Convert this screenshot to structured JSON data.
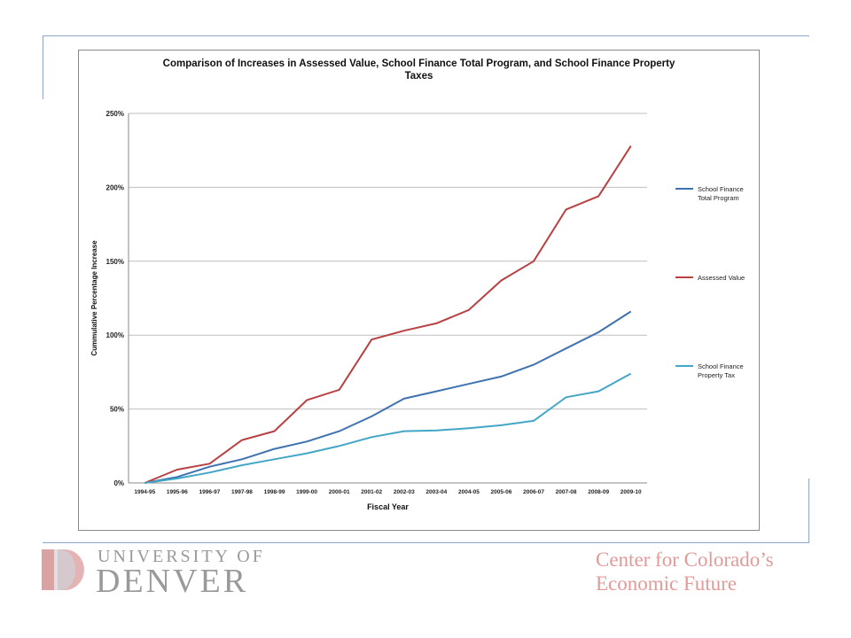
{
  "footer": {
    "university_line1": "UNIVERSITY OF",
    "university_line2": "DENVER",
    "center_line1": "Center for Colorado’s",
    "center_line2": "Economic Future"
  },
  "colors": {
    "frame": "#8fa6c8",
    "grid": "#bfbfbf",
    "axis": "#8a8a8a"
  },
  "chart_data": {
    "type": "line",
    "title_line1": "Comparison of Increases in Assessed Value, School Finance Total Program, and School Finance Property",
    "title_line2": "Taxes",
    "xlabel": "Fiscal Year",
    "ylabel": "Cummulative Percentage Increase",
    "ylim": [
      0,
      250
    ],
    "yticks": [
      0,
      50,
      100,
      150,
      200,
      250
    ],
    "ytick_labels": [
      "0%",
      "50%",
      "100%",
      "150%",
      "200%",
      "250%"
    ],
    "grid": true,
    "legend_position": "right",
    "categories": [
      "1994-95",
      "1995-96",
      "1996-97",
      "1997-98",
      "1998-99",
      "1999-00",
      "2000-01",
      "2001-02",
      "2002-03",
      "2003-04",
      "2004-05",
      "2005-06",
      "2006-07",
      "2007-08",
      "2008-09",
      "2009-10"
    ],
    "series": [
      {
        "name_lines": [
          "School Finance",
          "Total Program"
        ],
        "color": "#3f72b0",
        "values": [
          0,
          4,
          11,
          16,
          23,
          28,
          35,
          45,
          57,
          62,
          67,
          72,
          80,
          91,
          102,
          116
        ]
      },
      {
        "name_lines": [
          "Assessed Value"
        ],
        "color": "#b84143",
        "values": [
          0,
          9,
          13,
          29,
          35,
          56,
          63,
          97,
          103,
          108,
          117,
          137,
          150,
          185,
          194,
          228
        ]
      },
      {
        "name_lines": [
          "School Finance",
          "Property Tax"
        ],
        "color": "#44a6c6",
        "values": [
          0,
          3,
          7,
          12,
          16,
          20,
          25,
          31,
          35,
          35.5,
          37,
          39,
          42,
          58,
          62,
          74
        ]
      }
    ]
  }
}
